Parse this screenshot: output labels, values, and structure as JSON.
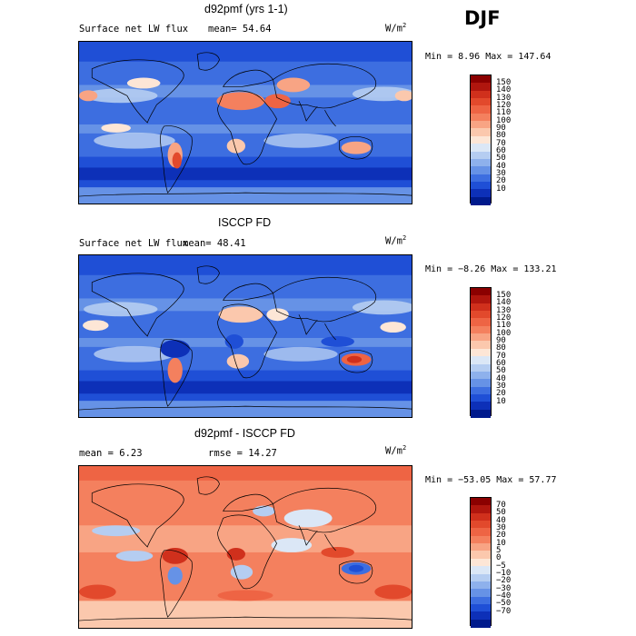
{
  "season": "DJF",
  "panels": [
    {
      "title": "d92pmf (yrs 1-1)",
      "variable": "Surface net LW flux",
      "stats_left": "mean=  54.64",
      "stats_right": "",
      "units": "W/m",
      "units_exp": "2",
      "minmax": "Min =   8.96 Max = 147.64",
      "colorbar": {
        "labels": [
          "150",
          "140",
          "130",
          "120",
          "110",
          "100",
          "90",
          "80",
          "70",
          "60",
          "50",
          "40",
          "30",
          "20",
          "10"
        ],
        "colors": [
          "#8b0000",
          "#b0160e",
          "#d0301c",
          "#e2492c",
          "#ee6444",
          "#f4805e",
          "#f8a484",
          "#fbc8ad",
          "#fde6d6",
          "#dbe7f6",
          "#b5cdf1",
          "#8eb1ec",
          "#6692e6",
          "#3d6ee0",
          "#1f4fd6",
          "#0d30b8",
          "#001a8c"
        ]
      },
      "field": "abs"
    },
    {
      "title": "ISCCP FD",
      "variable": "Surface net LW flux",
      "stats_left": "mean=  48.41",
      "stats_right": "",
      "units": "W/m",
      "units_exp": "2",
      "minmax": "Min =  −8.26 Max = 133.21",
      "colorbar": {
        "labels": [
          "150",
          "140",
          "130",
          "120",
          "110",
          "100",
          "90",
          "80",
          "70",
          "60",
          "50",
          "40",
          "30",
          "20",
          "10"
        ],
        "colors": [
          "#8b0000",
          "#b0160e",
          "#d0301c",
          "#e2492c",
          "#ee6444",
          "#f4805e",
          "#f8a484",
          "#fbc8ad",
          "#fde6d6",
          "#dbe7f6",
          "#b5cdf1",
          "#8eb1ec",
          "#6692e6",
          "#3d6ee0",
          "#1f4fd6",
          "#0d30b8",
          "#001a8c"
        ]
      },
      "field": "abs2"
    },
    {
      "title": "d92pmf - ISCCP FD",
      "variable": "",
      "stats_left": "mean =   6.23",
      "stats_right": "rmse =  14.27",
      "units": "W/m",
      "units_exp": "2",
      "minmax": "Min = −53.05 Max =  57.77",
      "colorbar": {
        "labels": [
          "70",
          "50",
          "40",
          "30",
          "20",
          "10",
          "5",
          "0",
          "−5",
          "−10",
          "−20",
          "−30",
          "−40",
          "−50",
          "−70"
        ],
        "colors": [
          "#8b0000",
          "#b0160e",
          "#d0301c",
          "#e2492c",
          "#ee6444",
          "#f4805e",
          "#f8a484",
          "#fbc8ad",
          "#fde6d6",
          "#dbe7f6",
          "#b5cdf1",
          "#8eb1ec",
          "#6692e6",
          "#3d6ee0",
          "#1f4fd6",
          "#0d30b8",
          "#001a8c"
        ]
      },
      "field": "diff"
    }
  ]
}
